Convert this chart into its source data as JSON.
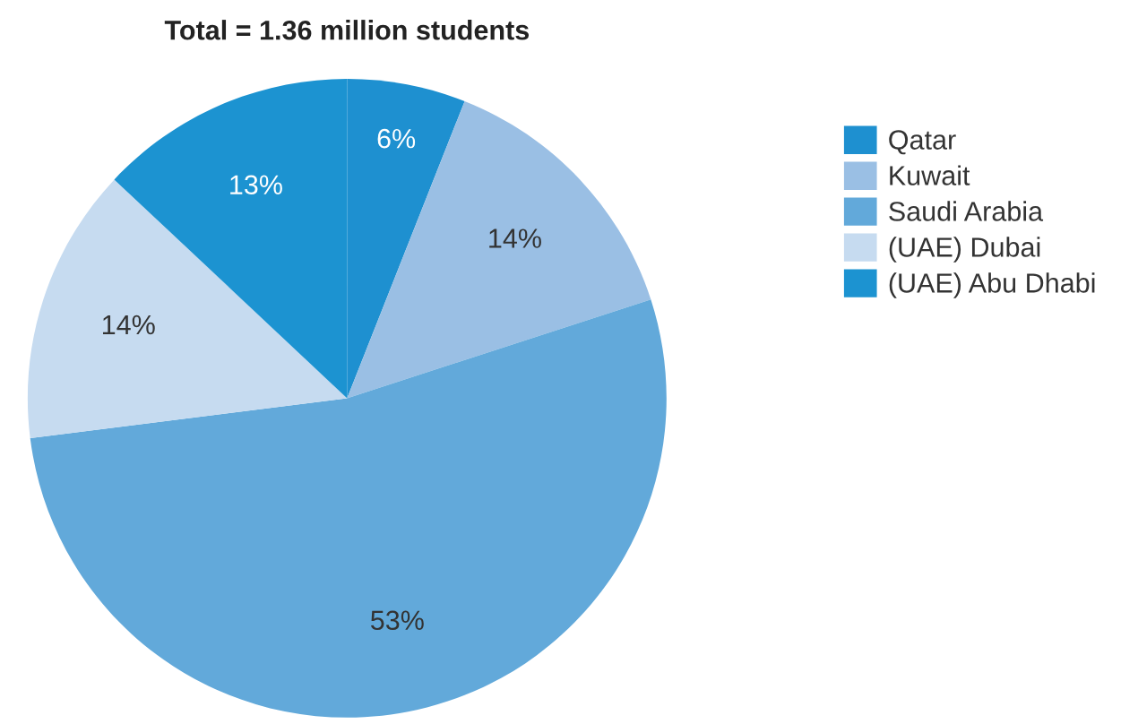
{
  "chart_data": {
    "type": "pie",
    "title": "Total = 1.36 million students",
    "categories": [
      "Qatar",
      "Kuwait",
      "Saudi Arabia",
      "(UAE) Dubai",
      "(UAE) Abu Dhabi"
    ],
    "values": [
      6,
      14,
      53,
      14,
      13
    ],
    "colors": [
      "#1e90d0",
      "#9abfe4",
      "#62a9da",
      "#c6dbf0",
      "#1c93d1"
    ],
    "value_labels": [
      "6%",
      "14%",
      "53%",
      "14%",
      "13%"
    ],
    "legend": "top right"
  }
}
